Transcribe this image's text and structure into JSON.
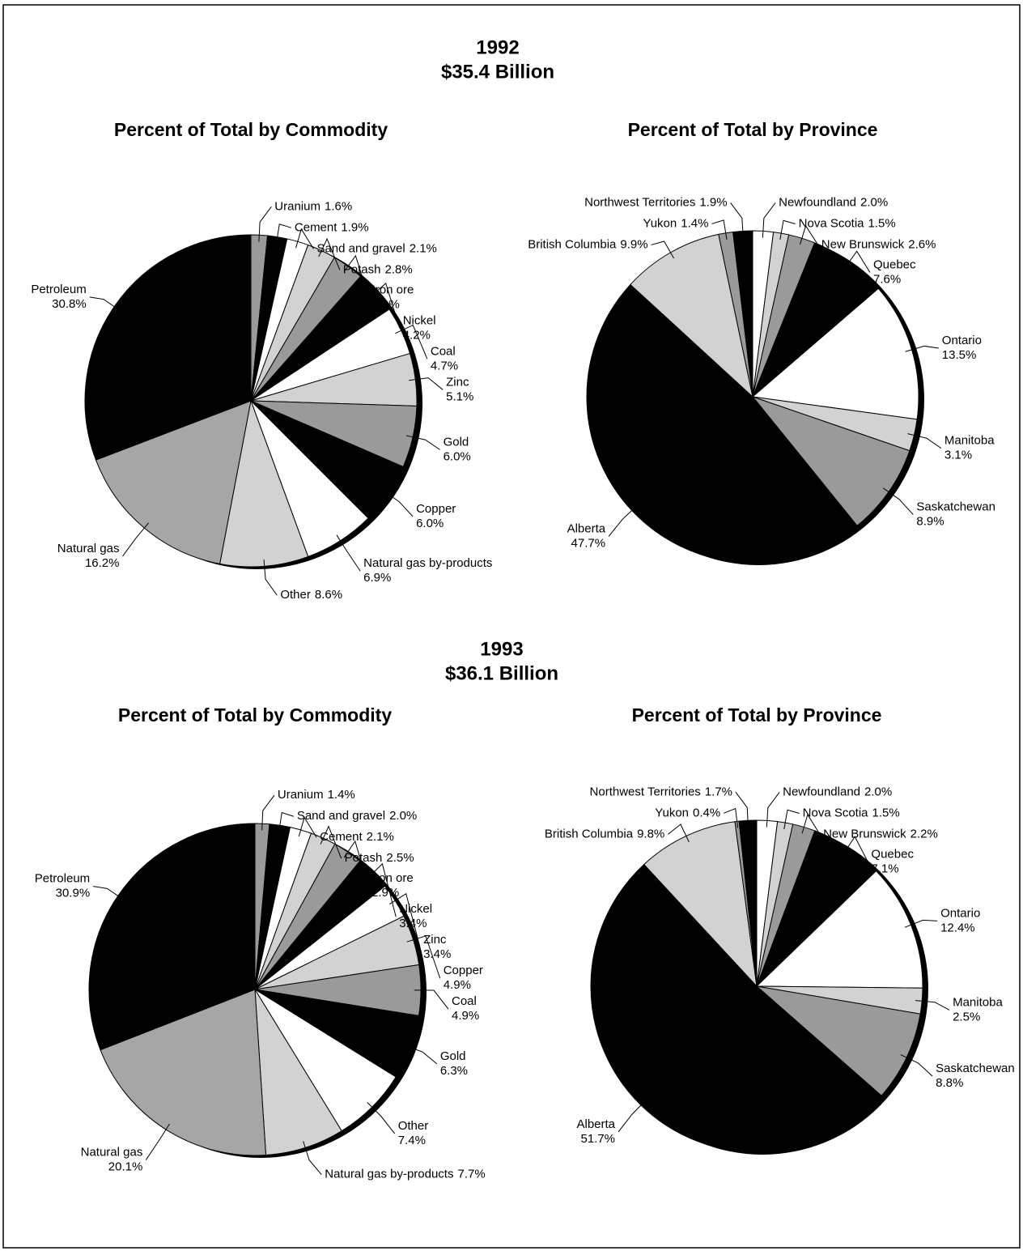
{
  "headings": [
    {
      "year": "1992",
      "total": "$35.4 Billion"
    },
    {
      "year": "1993",
      "total": "$36.1 Billion"
    }
  ],
  "chart_data": [
    {
      "type": "pie",
      "title": "Percent of Total by Commodity",
      "categories": [
        "Uranium",
        "Cement",
        "Sand and gravel",
        "Potash",
        "Iron ore",
        "Nickel",
        "Coal",
        "Zinc",
        "Gold",
        "Copper",
        "Natural gas by-products",
        "Other",
        "Natural gas",
        "Petroleum"
      ],
      "values": [
        1.6,
        1.9,
        2.1,
        2.8,
        3.1,
        4.2,
        4.7,
        5.1,
        6.0,
        6.0,
        6.9,
        8.6,
        16.2,
        30.8
      ],
      "value_labels": [
        "1.6%",
        "1.9%",
        "2.1%",
        "2.8%",
        "3.1%",
        "4.2%",
        "4.7%",
        "5.1%",
        "6.0%",
        "6.0%",
        "6.9%",
        "8.6%",
        "16.2%",
        "30.8%"
      ],
      "colors": [
        "#9a9a9a",
        "#000000",
        "#ffffff",
        "#d2d2d2",
        "#9a9a9a",
        "#000000",
        "#ffffff",
        "#d2d2d2",
        "#9a9a9a",
        "#000000",
        "#ffffff",
        "#d2d2d2",
        "#a6a6a6",
        "#000000"
      ]
    },
    {
      "type": "pie",
      "title": "Percent of Total by Province",
      "categories": [
        "Newfoundland",
        "Nova Scotia",
        "New Brunswick",
        "Quebec",
        "Ontario",
        "Manitoba",
        "Saskatchewan",
        "Alberta",
        "British Columbia",
        "Yukon",
        "Northwest Territories"
      ],
      "values": [
        2.0,
        1.5,
        2.6,
        7.6,
        13.5,
        3.1,
        8.9,
        47.7,
        9.9,
        1.4,
        1.9
      ],
      "value_labels": [
        "2.0%",
        "1.5%",
        "2.6%",
        "7.6%",
        "13.5%",
        "3.1%",
        "8.9%",
        "47.7%",
        "9.9%",
        "1.4%",
        "1.9%"
      ],
      "colors": [
        "#ffffff",
        "#d2d2d2",
        "#9a9a9a",
        "#000000",
        "#ffffff",
        "#d2d2d2",
        "#9a9a9a",
        "#000000",
        "#d2d2d2",
        "#9a9a9a",
        "#000000"
      ]
    },
    {
      "type": "pie",
      "title": "Percent of Total by Commodity",
      "categories": [
        "Uranium",
        "Sand and gravel",
        "Cement",
        "Potash",
        "Iron ore",
        "Nickel",
        "Zinc",
        "Copper",
        "Coal",
        "Gold",
        "Other",
        "Natural gas by-products",
        "Natural gas",
        "Petroleum"
      ],
      "values": [
        1.4,
        2.0,
        2.1,
        2.5,
        2.9,
        3.4,
        3.4,
        4.9,
        4.9,
        6.3,
        7.4,
        7.7,
        20.1,
        30.9
      ],
      "value_labels": [
        "1.4%",
        "2.0%",
        "2.1%",
        "2.5%",
        "2.9%",
        "3.4%",
        "3.4%",
        "4.9%",
        "4.9%",
        "6.3%",
        "7.4%",
        "7.7%",
        "20.1%",
        "30.9%"
      ],
      "colors": [
        "#9a9a9a",
        "#000000",
        "#ffffff",
        "#d2d2d2",
        "#9a9a9a",
        "#000000",
        "#ffffff",
        "#d2d2d2",
        "#9a9a9a",
        "#000000",
        "#ffffff",
        "#d2d2d2",
        "#a6a6a6",
        "#000000"
      ]
    },
    {
      "type": "pie",
      "title": "Percent of Total by Province",
      "categories": [
        "Newfoundland",
        "Nova Scotia",
        "New Brunswick",
        "Quebec",
        "Ontario",
        "Manitoba",
        "Saskatchewan",
        "Alberta",
        "British Columbia",
        "Yukon",
        "Northwest Territories"
      ],
      "values": [
        2.0,
        1.5,
        2.2,
        7.1,
        12.4,
        2.5,
        8.8,
        51.7,
        9.8,
        0.4,
        1.7
      ],
      "value_labels": [
        "2.0%",
        "1.5%",
        "2.2%",
        "7.1%",
        "12.4%",
        "2.5%",
        "8.8%",
        "51.7%",
        "9.8%",
        "0.4%",
        "1.7%"
      ],
      "colors": [
        "#ffffff",
        "#d2d2d2",
        "#9a9a9a",
        "#000000",
        "#ffffff",
        "#d2d2d2",
        "#9a9a9a",
        "#000000",
        "#d2d2d2",
        "#9a9a9a",
        "#000000"
      ]
    }
  ]
}
